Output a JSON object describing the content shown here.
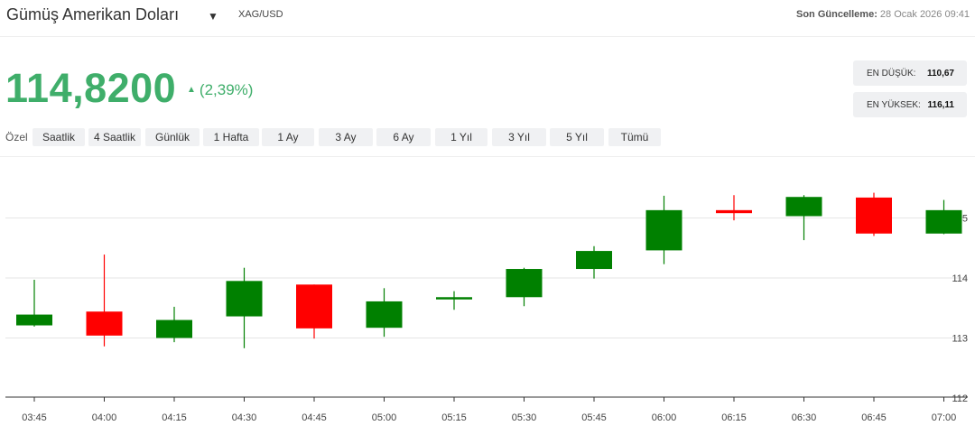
{
  "header": {
    "title": "Gümüş Amerikan Doları",
    "caret_icon": "caret-down-icon",
    "symbol": "XAG/USD",
    "updated_label": "Son Güncelleme:",
    "updated_value": "28 Ocak 2026 09:41"
  },
  "price": {
    "value": "114,8200",
    "change": "(2,39%)",
    "trend_icon": "triangle-up-icon",
    "color": "#3fae6a"
  },
  "stats": {
    "low_label": "EN DÜŞÜK:",
    "low_value": "110,67",
    "high_label": "EN YÜKSEK:",
    "high_value": "116,11"
  },
  "ranges": {
    "custom_label": "Özel",
    "buttons": [
      "Saatlik",
      "4 Saatlik",
      "Günlük",
      "1 Hafta",
      "1 Ay",
      "3 Ay",
      "6 Ay",
      "1 Yıl",
      "3 Yıl",
      "5 Yıl",
      "Tümü"
    ]
  },
  "colors": {
    "up": "#008000",
    "down": "#ff0000",
    "grid": "#e6e6e6"
  },
  "chart_data": {
    "type": "candlestick",
    "x": [
      "03:45",
      "04:00",
      "04:15",
      "04:30",
      "04:45",
      "05:00",
      "05:15",
      "05:30",
      "05:45",
      "06:00",
      "06:15",
      "06:30",
      "06:45",
      "07:00"
    ],
    "candles": [
      {
        "open": 113.21,
        "high": 113.97,
        "low": 113.19,
        "close": 113.39
      },
      {
        "open": 113.44,
        "high": 114.39,
        "low": 112.86,
        "close": 113.04
      },
      {
        "open": 113.0,
        "high": 113.52,
        "low": 112.93,
        "close": 113.3
      },
      {
        "open": 113.36,
        "high": 114.17,
        "low": 112.83,
        "close": 113.95
      },
      {
        "open": 113.89,
        "high": 113.89,
        "low": 112.99,
        "close": 113.16
      },
      {
        "open": 113.17,
        "high": 113.83,
        "low": 113.02,
        "close": 113.61
      },
      {
        "open": 113.65,
        "high": 113.78,
        "low": 113.47,
        "close": 113.68
      },
      {
        "open": 113.68,
        "high": 114.17,
        "low": 113.53,
        "close": 114.15
      },
      {
        "open": 114.15,
        "high": 114.53,
        "low": 113.99,
        "close": 114.45
      },
      {
        "open": 114.46,
        "high": 115.37,
        "low": 114.23,
        "close": 115.13
      },
      {
        "open": 115.13,
        "high": 115.38,
        "low": 114.96,
        "close": 115.08
      },
      {
        "open": 115.03,
        "high": 115.38,
        "low": 114.63,
        "close": 115.35
      },
      {
        "open": 115.34,
        "high": 115.42,
        "low": 114.7,
        "close": 114.74
      },
      {
        "open": 114.74,
        "high": 115.3,
        "low": 114.73,
        "close": 115.13
      }
    ],
    "y_ticks": [
      112,
      113,
      114,
      115
    ],
    "ylim": [
      112,
      116.2
    ],
    "grid": true
  }
}
